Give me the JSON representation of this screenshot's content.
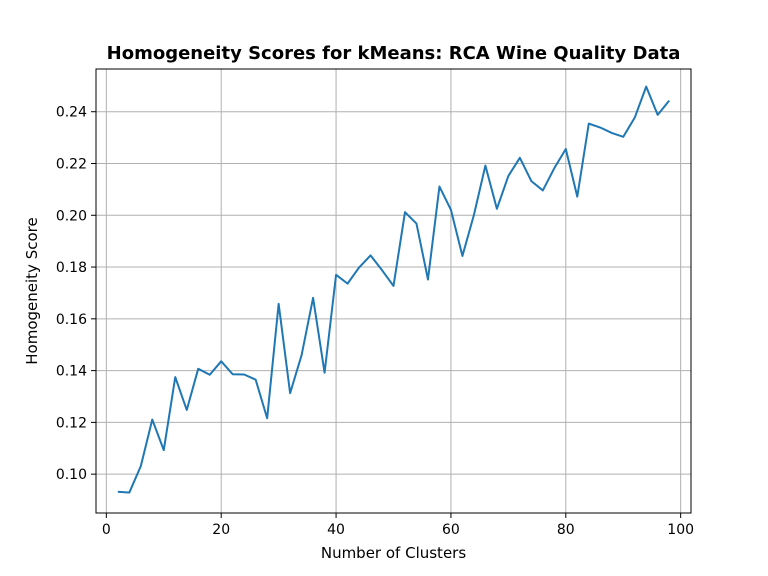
{
  "chart_data": {
    "type": "line",
    "title": "Homogeneity Scores for kMeans: RCA Wine Quality Data",
    "xlabel": "Number of Clusters",
    "ylabel": "Homogeneity Score",
    "xlim": [
      -1.8,
      101.8
    ],
    "ylim": [
      0.085,
      0.2565
    ],
    "xticks": [
      0,
      20,
      40,
      60,
      80,
      100
    ],
    "yticks": [
      0.1,
      0.12,
      0.14,
      0.16,
      0.18,
      0.2,
      0.22,
      0.24
    ],
    "xtick_labels": [
      "0",
      "20",
      "40",
      "60",
      "80",
      "100"
    ],
    "ytick_labels": [
      "0.10",
      "0.12",
      "0.14",
      "0.16",
      "0.18",
      "0.20",
      "0.22",
      "0.24"
    ],
    "grid": true,
    "color": "#1f77b4",
    "series": [
      {
        "x": [
          2,
          4,
          6,
          8,
          10,
          12,
          14,
          16,
          18,
          20,
          22,
          24,
          26,
          28,
          30,
          32,
          34,
          36,
          38,
          40,
          42,
          44,
          46,
          48,
          50,
          52,
          54,
          56,
          58,
          60,
          62,
          64,
          66,
          68,
          70,
          72,
          74,
          76,
          78,
          80,
          82,
          84,
          86,
          88,
          90,
          92,
          94,
          96,
          98
        ],
        "y": [
          0.0932,
          0.0929,
          0.1031,
          0.1211,
          0.1093,
          0.1375,
          0.1248,
          0.1407,
          0.1384,
          0.1436,
          0.1386,
          0.1385,
          0.1365,
          0.1216,
          0.1658,
          0.1313,
          0.146,
          0.1681,
          0.1392,
          0.177,
          0.1736,
          0.1798,
          0.1845,
          0.1788,
          0.1727,
          0.2012,
          0.1968,
          0.1752,
          0.2111,
          0.2021,
          0.1843,
          0.2001,
          0.2192,
          0.2025,
          0.2152,
          0.2222,
          0.2132,
          0.2096,
          0.2182,
          0.2256,
          0.2072,
          0.2354,
          0.2339,
          0.2318,
          0.2303,
          0.2377,
          0.2497,
          0.2388,
          0.2443
        ]
      }
    ]
  }
}
